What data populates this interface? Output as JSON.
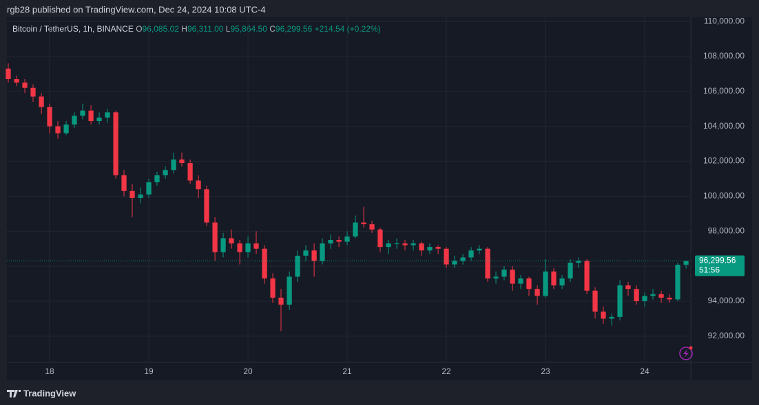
{
  "header": {
    "publisher": "rgb28 published on TradingView.com, Dec 24, 2024 10:08 UTC-4",
    "brand": "TradingView"
  },
  "legend": {
    "symbol": "Bitcoin / TetherUS, 1h, BINANCE",
    "fields": [
      {
        "key": "O",
        "text": "96,085.02"
      },
      {
        "key": "H",
        "text": "96,311.00"
      },
      {
        "key": "L",
        "text": "95,864.50"
      },
      {
        "key": "C",
        "text": "96,299.56"
      }
    ],
    "change": "+214.54 (+0.22%)"
  },
  "chart_data": {
    "type": "candlestick",
    "up_color": "#089981",
    "down_color": "#f23645",
    "grid": true,
    "x": [
      17.583,
      17.667,
      17.75,
      17.833,
      17.917,
      18,
      18.083,
      18.167,
      18.25,
      18.333,
      18.417,
      18.5,
      18.583,
      18.667,
      18.75,
      18.833,
      18.917,
      19,
      19.083,
      19.167,
      19.25,
      19.333,
      19.417,
      19.5,
      19.583,
      19.667,
      19.75,
      19.833,
      19.917,
      20,
      20.083,
      20.167,
      20.25,
      20.333,
      20.417,
      20.5,
      20.583,
      20.667,
      20.75,
      20.833,
      20.917,
      21,
      21.083,
      21.167,
      21.25,
      21.333,
      21.417,
      21.5,
      21.583,
      21.667,
      21.75,
      21.833,
      21.917,
      22,
      22.083,
      22.167,
      22.25,
      22.333,
      22.417,
      22.5,
      22.583,
      22.667,
      22.75,
      22.833,
      22.917,
      23,
      23.083,
      23.167,
      23.25,
      23.333,
      23.417,
      23.5,
      23.583,
      23.667,
      23.75,
      23.833,
      23.917,
      24,
      24.083,
      24.167,
      24.25,
      24.333,
      24.417
    ],
    "ohlc": [
      [
        107300,
        107600,
        106500,
        106700
      ],
      [
        106700,
        106900,
        106300,
        106500
      ],
      [
        106500,
        106700,
        105900,
        106200
      ],
      [
        106200,
        106400,
        105400,
        105700
      ],
      [
        105700,
        105900,
        104700,
        105100
      ],
      [
        105100,
        105300,
        103600,
        104000
      ],
      [
        104000,
        104300,
        103300,
        103600
      ],
      [
        103600,
        104300,
        103500,
        104100
      ],
      [
        104100,
        104800,
        103900,
        104600
      ],
      [
        104600,
        105300,
        104400,
        104900
      ],
      [
        104900,
        105200,
        104100,
        104300
      ],
      [
        104300,
        104800,
        104100,
        104500
      ],
      [
        104500,
        105000,
        104200,
        104800
      ],
      [
        104800,
        104900,
        101000,
        101200
      ],
      [
        101200,
        101500,
        100000,
        100300
      ],
      [
        100300,
        100700,
        98800,
        99900
      ],
      [
        99900,
        100500,
        99600,
        100100
      ],
      [
        100100,
        101000,
        99900,
        100800
      ],
      [
        100800,
        101400,
        100600,
        101200
      ],
      [
        101200,
        101700,
        101000,
        101500
      ],
      [
        101500,
        102500,
        101300,
        102100
      ],
      [
        102100,
        102500,
        101700,
        101900
      ],
      [
        101900,
        102100,
        100700,
        100900
      ],
      [
        100900,
        101200,
        99900,
        100400
      ],
      [
        100400,
        100600,
        98300,
        98500
      ],
      [
        98500,
        98800,
        96300,
        96800
      ],
      [
        96800,
        97900,
        96500,
        97600
      ],
      [
        97600,
        98100,
        97000,
        97300
      ],
      [
        97300,
        97500,
        96100,
        96800
      ],
      [
        96800,
        97700,
        96500,
        97300
      ],
      [
        97300,
        98000,
        96700,
        97000
      ],
      [
        97000,
        97200,
        95000,
        95300
      ],
      [
        95300,
        95600,
        93900,
        94200
      ],
      [
        94200,
        94700,
        92300,
        93800
      ],
      [
        93800,
        95700,
        93500,
        95400
      ],
      [
        95400,
        96900,
        95100,
        96600
      ],
      [
        96600,
        97200,
        96300,
        96900
      ],
      [
        96900,
        97300,
        95400,
        96300
      ],
      [
        96300,
        97600,
        96100,
        97300
      ],
      [
        97300,
        97800,
        97000,
        97500
      ],
      [
        97500,
        97700,
        97100,
        97400
      ],
      [
        97400,
        98000,
        97200,
        97700
      ],
      [
        97700,
        98900,
        97600,
        98500
      ],
      [
        98500,
        99400,
        98200,
        98400
      ],
      [
        98400,
        98600,
        97900,
        98100
      ],
      [
        98100,
        98200,
        96800,
        97100
      ],
      [
        97100,
        97500,
        96700,
        97300
      ],
      [
        97300,
        97600,
        97000,
        97300
      ],
      [
        97300,
        97500,
        96900,
        97200
      ],
      [
        97200,
        97500,
        96900,
        97300
      ],
      [
        97300,
        97400,
        96600,
        96900
      ],
      [
        96900,
        97300,
        96700,
        97100
      ],
      [
        97100,
        97200,
        96700,
        97000
      ],
      [
        97000,
        97100,
        95900,
        96100
      ],
      [
        96100,
        96600,
        95900,
        96300
      ],
      [
        96300,
        96700,
        96100,
        96500
      ],
      [
        96500,
        97100,
        96300,
        96900
      ],
      [
        96900,
        97200,
        96700,
        97000
      ],
      [
        97000,
        97100,
        95100,
        95300
      ],
      [
        95300,
        95700,
        95000,
        95400
      ],
      [
        95400,
        96000,
        95200,
        95800
      ],
      [
        95800,
        96000,
        94600,
        95000
      ],
      [
        95000,
        95500,
        94700,
        95300
      ],
      [
        95300,
        95400,
        94300,
        94700
      ],
      [
        94700,
        94900,
        93800,
        94300
      ],
      [
        94300,
        96400,
        94200,
        95700
      ],
      [
        95700,
        95900,
        94700,
        94900
      ],
      [
        94900,
        95500,
        94700,
        95300
      ],
      [
        95300,
        96400,
        95100,
        96200
      ],
      [
        96200,
        96500,
        95900,
        96300
      ],
      [
        96300,
        96400,
        94400,
        94600
      ],
      [
        94600,
        94800,
        93000,
        93400
      ],
      [
        93400,
        93700,
        92700,
        93000
      ],
      [
        93000,
        93300,
        92600,
        93100
      ],
      [
        93100,
        95200,
        92900,
        94900
      ],
      [
        94900,
        95100,
        94300,
        94700
      ],
      [
        94700,
        94900,
        93800,
        94000
      ],
      [
        94000,
        94500,
        93700,
        94300
      ],
      [
        94300,
        94700,
        94100,
        94400
      ],
      [
        94400,
        94600,
        93900,
        94200
      ],
      [
        94200,
        94400,
        93900,
        94100
      ],
      [
        94100,
        96200,
        94000,
        96085.02
      ],
      [
        96085.02,
        96311,
        95864.5,
        96299.56
      ]
    ],
    "xlim": [
      17.569,
      24.465
    ],
    "xticks": [
      18,
      19,
      20,
      21,
      22,
      23,
      24
    ],
    "ylim": [
      90500,
      110240
    ],
    "yticks": [
      {
        "value": 92000,
        "label": "92,000.00"
      },
      {
        "value": 94000,
        "label": "94,000.00"
      },
      {
        "value": 96000,
        "label": "96,000.00"
      },
      {
        "value": 98000,
        "label": "98,000.00"
      },
      {
        "value": 100000,
        "label": "100,000.00"
      },
      {
        "value": 102000,
        "label": "102,000.00"
      },
      {
        "value": 104000,
        "label": "104,000.00"
      },
      {
        "value": 106000,
        "label": "106,000.00"
      },
      {
        "value": 108000,
        "label": "108,000.00"
      },
      {
        "value": 110000,
        "label": "110,000.00"
      }
    ],
    "last_price": {
      "value": 96299.56,
      "label": "96,299.56"
    },
    "countdown": "51:56"
  }
}
